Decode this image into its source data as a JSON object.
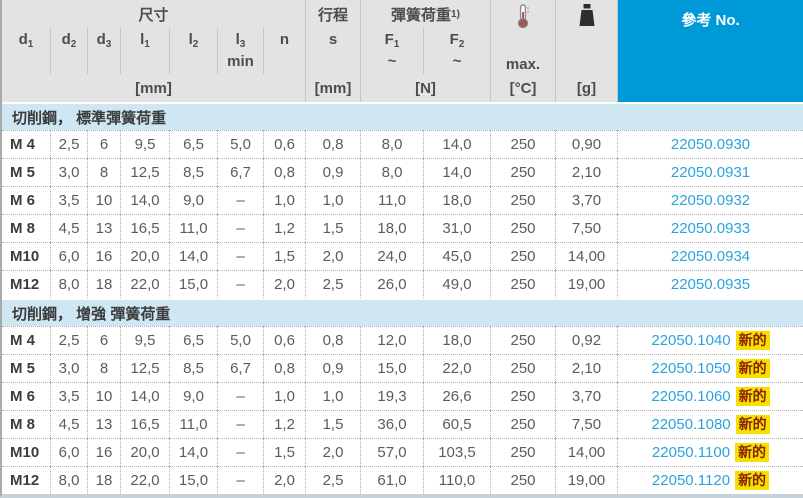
{
  "colors": {
    "accent_blue": "#0099d8",
    "ref_link_blue": "#2ba3dc",
    "section_band_blue": "#cfe7f3",
    "header_gray": "#e3e3e3",
    "badge_bg_yellow": "#f6e000",
    "badge_text_red": "#8a2300"
  },
  "header": {
    "dims": {
      "title": "尺寸",
      "unit": "[mm]",
      "cols": [
        {
          "base": "d",
          "sub": "1"
        },
        {
          "base": "d",
          "sub": "2"
        },
        {
          "base": "d",
          "sub": "3"
        },
        {
          "base": "l",
          "sub": "1"
        },
        {
          "base": "l",
          "sub": "2"
        },
        {
          "base": "l",
          "sub": "3",
          "note": "min"
        },
        {
          "base": "n",
          "sub": ""
        }
      ]
    },
    "stroke": {
      "title": "行程",
      "symbol": "s",
      "unit": "[mm]"
    },
    "spring": {
      "title": "彈簧荷重",
      "footnote": "1)",
      "f1": {
        "base": "F",
        "sub": "1",
        "approx": "~"
      },
      "f2": {
        "base": "F",
        "sub": "2",
        "approx": "~"
      },
      "unit": "[N]"
    },
    "temp": {
      "label": "max.",
      "unit": "[°C]"
    },
    "weight": {
      "unit": "[g]"
    },
    "ref": {
      "title": "參考 No."
    }
  },
  "new_badge": "新的",
  "sections": [
    {
      "title": "切削鋼， 標準彈簧荷重",
      "rows": [
        {
          "thread": "M 4",
          "d2": "2,5",
          "d3": "6",
          "l1": "9,5",
          "l2": "6,5",
          "l3": "5,0",
          "n": "0,6",
          "s": "0,8",
          "f1": "8,0",
          "f2": "14,0",
          "tmax": "250",
          "weight": "0,90",
          "ref": "22050.0930",
          "new": false
        },
        {
          "thread": "M 5",
          "d2": "3,0",
          "d3": "8",
          "l1": "12,5",
          "l2": "8,5",
          "l3": "6,7",
          "n": "0,8",
          "s": "0,9",
          "f1": "8,0",
          "f2": "14,0",
          "tmax": "250",
          "weight": "2,10",
          "ref": "22050.0931",
          "new": false
        },
        {
          "thread": "M 6",
          "d2": "3,5",
          "d3": "10",
          "l1": "14,0",
          "l2": "9,0",
          "l3": "–",
          "n": "1,0",
          "s": "1,0",
          "f1": "11,0",
          "f2": "18,0",
          "tmax": "250",
          "weight": "3,70",
          "ref": "22050.0932",
          "new": false
        },
        {
          "thread": "M 8",
          "d2": "4,5",
          "d3": "13",
          "l1": "16,5",
          "l2": "11,0",
          "l3": "–",
          "n": "1,2",
          "s": "1,5",
          "f1": "18,0",
          "f2": "31,0",
          "tmax": "250",
          "weight": "7,50",
          "ref": "22050.0933",
          "new": false
        },
        {
          "thread": "M10",
          "d2": "6,0",
          "d3": "16",
          "l1": "20,0",
          "l2": "14,0",
          "l3": "–",
          "n": "1,5",
          "s": "2,0",
          "f1": "24,0",
          "f2": "45,0",
          "tmax": "250",
          "weight": "14,00",
          "ref": "22050.0934",
          "new": false
        },
        {
          "thread": "M12",
          "d2": "8,0",
          "d3": "18",
          "l1": "22,0",
          "l2": "15,0",
          "l3": "–",
          "n": "2,0",
          "s": "2,5",
          "f1": "26,0",
          "f2": "49,0",
          "tmax": "250",
          "weight": "19,00",
          "ref": "22050.0935",
          "new": false
        }
      ]
    },
    {
      "title": "切削鋼， 增強 彈簧荷重",
      "rows": [
        {
          "thread": "M 4",
          "d2": "2,5",
          "d3": "6",
          "l1": "9,5",
          "l2": "6,5",
          "l3": "5,0",
          "n": "0,6",
          "s": "0,8",
          "f1": "12,0",
          "f2": "18,0",
          "tmax": "250",
          "weight": "0,92",
          "ref": "22050.1040",
          "new": true
        },
        {
          "thread": "M 5",
          "d2": "3,0",
          "d3": "8",
          "l1": "12,5",
          "l2": "8,5",
          "l3": "6,7",
          "n": "0,8",
          "s": "0,9",
          "f1": "15,0",
          "f2": "22,0",
          "tmax": "250",
          "weight": "2,10",
          "ref": "22050.1050",
          "new": true
        },
        {
          "thread": "M 6",
          "d2": "3,5",
          "d3": "10",
          "l1": "14,0",
          "l2": "9,0",
          "l3": "–",
          "n": "1,0",
          "s": "1,0",
          "f1": "19,3",
          "f2": "26,6",
          "tmax": "250",
          "weight": "3,70",
          "ref": "22050.1060",
          "new": true
        },
        {
          "thread": "M 8",
          "d2": "4,5",
          "d3": "13",
          "l1": "16,5",
          "l2": "11,0",
          "l3": "–",
          "n": "1,2",
          "s": "1,5",
          "f1": "36,0",
          "f2": "60,5",
          "tmax": "250",
          "weight": "7,50",
          "ref": "22050.1080",
          "new": true
        },
        {
          "thread": "M10",
          "d2": "6,0",
          "d3": "16",
          "l1": "20,0",
          "l2": "14,0",
          "l3": "–",
          "n": "1,5",
          "s": "2,0",
          "f1": "57,0",
          "f2": "103,5",
          "tmax": "250",
          "weight": "14,00",
          "ref": "22050.1100",
          "new": true
        },
        {
          "thread": "M12",
          "d2": "8,0",
          "d3": "18",
          "l1": "22,0",
          "l2": "15,0",
          "l3": "–",
          "n": "2,0",
          "s": "2,5",
          "f1": "61,0",
          "f2": "110,0",
          "tmax": "250",
          "weight": "19,00",
          "ref": "22050.1120",
          "new": true
        }
      ]
    }
  ]
}
